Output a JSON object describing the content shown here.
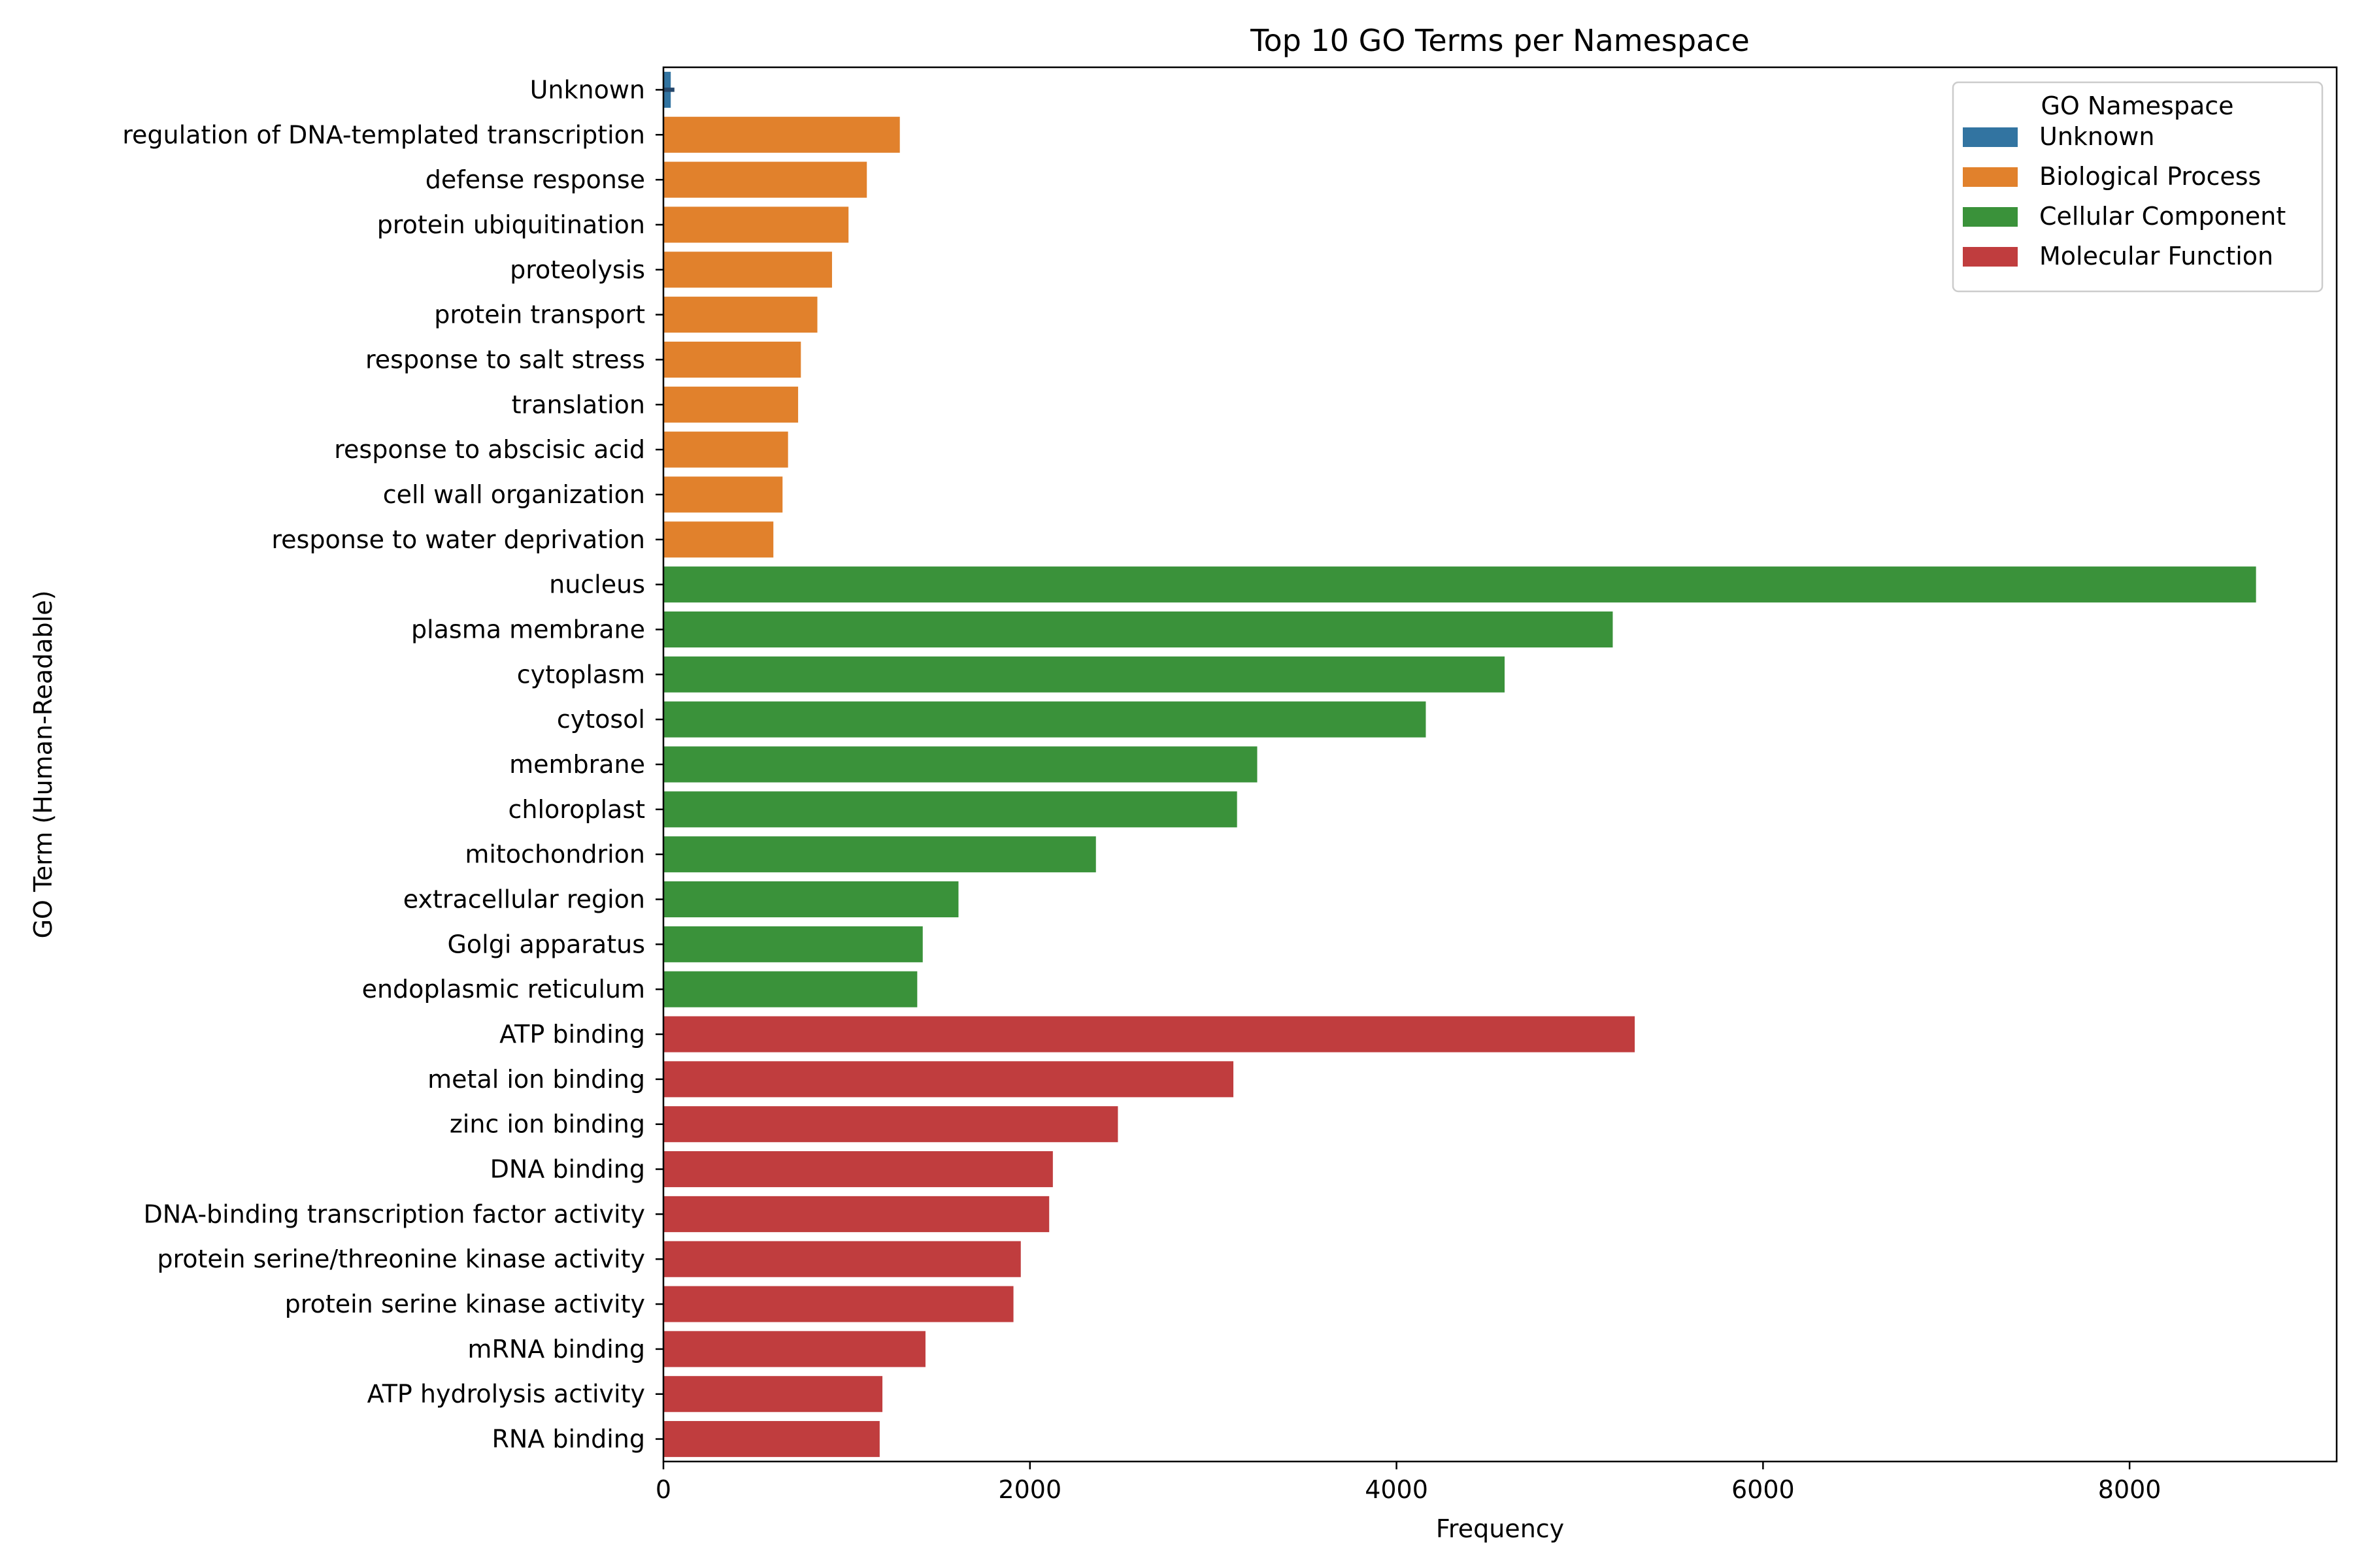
{
  "chart_data": {
    "type": "bar",
    "orientation": "horizontal",
    "title": "Top 10 GO Terms per Namespace",
    "xlabel": "Frequency",
    "ylabel": "GO Term (Human-Readable)",
    "xlim": [
      0,
      9130
    ],
    "x_ticks": [
      0,
      2000,
      4000,
      6000,
      8000
    ],
    "grid": false,
    "legend": {
      "title": "GO Namespace",
      "position": "top-right",
      "entries": [
        {
          "name": "Unknown",
          "color": "#3274a1"
        },
        {
          "name": "Biological Process",
          "color": "#e1812c"
        },
        {
          "name": "Cellular Component",
          "color": "#3a923a"
        },
        {
          "name": "Molecular Function",
          "color": "#c03d3e"
        }
      ]
    },
    "categories": [
      "Unknown",
      "regulation of DNA-templated transcription",
      "defense response",
      "protein ubiquitination",
      "proteolysis",
      "protein transport",
      "response to salt stress",
      "translation",
      "response to abscisic acid",
      "cell wall organization",
      "response to water deprivation",
      "nucleus",
      "plasma membrane",
      "cytoplasm",
      "cytosol",
      "membrane",
      "chloroplast",
      "mitochondrion",
      "extracellular region",
      "Golgi apparatus",
      "endoplasmic reticulum",
      "ATP binding",
      "metal ion binding",
      "zinc ion binding",
      "DNA binding",
      "DNA-binding transcription factor activity",
      "protein serine/threonine kinase activity",
      "protein serine kinase activity",
      "mRNA binding",
      "ATP hydrolysis activity",
      "RNA binding"
    ],
    "namespaces": [
      "Unknown",
      "Biological Process",
      "Biological Process",
      "Biological Process",
      "Biological Process",
      "Biological Process",
      "Biological Process",
      "Biological Process",
      "Biological Process",
      "Biological Process",
      "Biological Process",
      "Cellular Component",
      "Cellular Component",
      "Cellular Component",
      "Cellular Component",
      "Cellular Component",
      "Cellular Component",
      "Cellular Component",
      "Cellular Component",
      "Cellular Component",
      "Cellular Component",
      "Molecular Function",
      "Molecular Function",
      "Molecular Function",
      "Molecular Function",
      "Molecular Function",
      "Molecular Function",
      "Molecular Function",
      "Molecular Function",
      "Molecular Function",
      "Molecular Function"
    ],
    "values": [
      40,
      1290,
      1110,
      1010,
      920,
      840,
      750,
      735,
      680,
      650,
      600,
      8690,
      5180,
      4590,
      4160,
      3240,
      3130,
      2360,
      1610,
      1415,
      1385,
      5300,
      3110,
      2480,
      2125,
      2105,
      1950,
      1910,
      1430,
      1195,
      1180
    ],
    "error_bars": [
      {
        "category": "Unknown",
        "low": 0,
        "high": 60
      }
    ]
  }
}
